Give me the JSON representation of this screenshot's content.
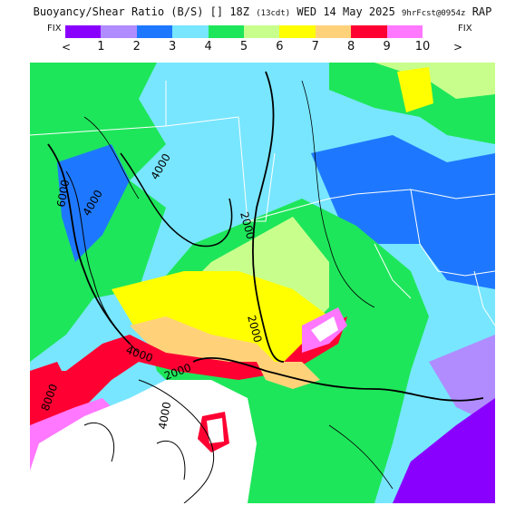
{
  "header": {
    "title_main": "Buoyancy/Shear Ratio (B/S) [] 18Z",
    "title_valid": "(13cdt)",
    "title_date": " WED 14 May 2025 ",
    "title_fcst": "9hrFcst@0954z",
    "title_model": " RAP"
  },
  "colorbar": {
    "fix_left": "FIX",
    "fix_right": "FIX",
    "arrow_left": "<",
    "arrow_right": ">",
    "colors": [
      "#8a00ff",
      "#b08cff",
      "#1e78ff",
      "#78e6ff",
      "#1ee65a",
      "#c8ff8c",
      "#ffff00",
      "#ffd27a",
      "#ff0032",
      "#ff78ff"
    ],
    "labels": [
      "1",
      "2",
      "3",
      "4",
      "5",
      "6",
      "7",
      "8",
      "9",
      "10"
    ]
  },
  "map": {
    "contour_labels": [
      "6000",
      "4000",
      "4000",
      "2000",
      "2000",
      "4000",
      "2000",
      "8000",
      "4000"
    ]
  }
}
